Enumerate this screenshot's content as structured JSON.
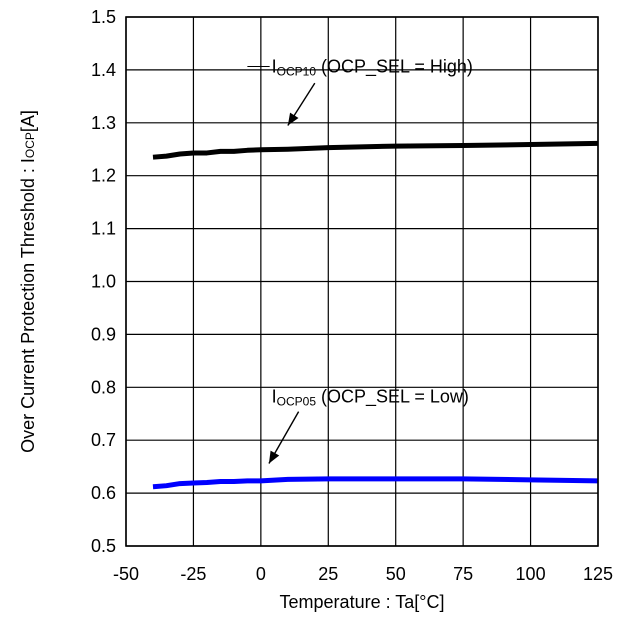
{
  "chart_data": {
    "type": "line",
    "title": "",
    "xlabel": "Temperature : Ta[°C]",
    "ylabel": {
      "prefix": "Over Current Protection Threshold : I",
      "sub": "OCP",
      "suffix": "[A]"
    },
    "xlim": [
      -50,
      125
    ],
    "ylim": [
      0.5,
      1.5
    ],
    "xticks": [
      -50,
      -25,
      0,
      25,
      50,
      75,
      100,
      125
    ],
    "yticks": [
      0.5,
      0.6,
      0.7,
      0.8,
      0.9,
      1.0,
      1.1,
      1.2,
      1.3,
      1.4,
      1.5
    ],
    "ytick_labels": [
      "0.5",
      "0.6",
      "0.7",
      "0.8",
      "0.9",
      "1.0",
      "1.1",
      "1.2",
      "1.3",
      "1.4",
      "1.5"
    ],
    "grid": true,
    "series": [
      {
        "color": "#000000",
        "label": {
          "prefix": "I",
          "sub": "OCP10",
          "suffix": " (OCP_SEL = High)"
        },
        "x": [
          -40,
          -35,
          -30,
          -25,
          -20,
          -15,
          -10,
          -5,
          0,
          10,
          25,
          50,
          75,
          100,
          125
        ],
        "y": [
          1.235,
          1.237,
          1.241,
          1.243,
          1.243,
          1.246,
          1.246,
          1.248,
          1.249,
          1.25,
          1.253,
          1.256,
          1.257,
          1.259,
          1.261
        ]
      },
      {
        "color": "#0000ff",
        "label": {
          "prefix": "I",
          "sub": "OCP05",
          "suffix": " (OCP_SEL = Low)"
        },
        "x": [
          -40,
          -35,
          -30,
          -25,
          -20,
          -15,
          -10,
          -5,
          0,
          10,
          25,
          50,
          75,
          100,
          125
        ],
        "y": [
          0.612,
          0.614,
          0.618,
          0.619,
          0.62,
          0.622,
          0.622,
          0.623,
          0.623,
          0.626,
          0.627,
          0.627,
          0.627,
          0.625,
          0.623
        ]
      }
    ]
  }
}
